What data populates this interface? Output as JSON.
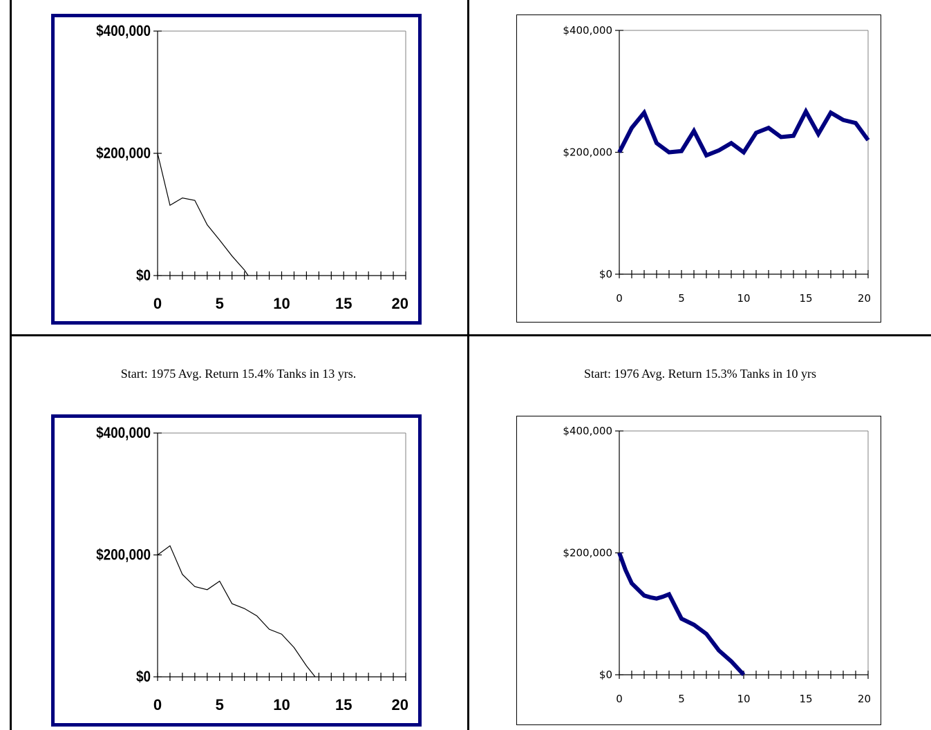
{
  "captions": {
    "left": "Start: 1975 Avg. Return 15.4% Tanks in 13 yrs.",
    "right": "Start: 1976 Avg. Return 15.3% Tanks in 10 yrs"
  },
  "colors": {
    "blue_frame": "#00007f",
    "thick_line": "#00007f",
    "thin_line": "#000000"
  },
  "chart_data": [
    {
      "type": "line",
      "title": "",
      "xlabel": "",
      "ylabel": "",
      "xlim": [
        0,
        20
      ],
      "ylim": [
        0,
        400000
      ],
      "x_ticks": [
        "0",
        "5",
        "10",
        "15",
        "20"
      ],
      "y_ticks": [
        "$0",
        "$200,000",
        "$400,000"
      ],
      "series": [
        {
          "x": [
            0,
            1,
            2,
            3,
            4,
            5,
            6,
            7,
            7.3
          ],
          "values": [
            200000,
            115000,
            127000,
            123000,
            83000,
            58000,
            32000,
            9000,
            0
          ]
        }
      ]
    },
    {
      "type": "line",
      "title": "",
      "xlabel": "",
      "ylabel": "",
      "xlim": [
        0,
        20
      ],
      "ylim": [
        0,
        400000
      ],
      "x_ticks": [
        "0",
        "5",
        "10",
        "15",
        "20"
      ],
      "y_ticks": [
        "$0",
        "$200,000",
        "$400,000"
      ],
      "series": [
        {
          "x": [
            0,
            1,
            2,
            3,
            4,
            5,
            6,
            7,
            8,
            9,
            10,
            11,
            12,
            13,
            14,
            15,
            16,
            17,
            18,
            19,
            20
          ],
          "values": [
            200000,
            240000,
            265000,
            215000,
            200000,
            202000,
            235000,
            195000,
            203000,
            215000,
            200000,
            232000,
            240000,
            225000,
            227000,
            267000,
            230000,
            265000,
            253000,
            248000,
            220000
          ]
        }
      ]
    },
    {
      "type": "line",
      "title": "",
      "xlabel": "",
      "ylabel": "",
      "xlim": [
        0,
        20
      ],
      "ylim": [
        0,
        400000
      ],
      "x_ticks": [
        "0",
        "5",
        "10",
        "15",
        "20"
      ],
      "y_ticks": [
        "$0",
        "$200,000",
        "$400,000"
      ],
      "series": [
        {
          "x": [
            0,
            1,
            2,
            3,
            4,
            5,
            6,
            7,
            8,
            9,
            10,
            11,
            12,
            12.7
          ],
          "values": [
            200000,
            215000,
            168000,
            148000,
            143000,
            157000,
            120000,
            112000,
            100000,
            78000,
            70000,
            48000,
            18000,
            0
          ]
        }
      ]
    },
    {
      "type": "line",
      "title": "",
      "xlabel": "",
      "ylabel": "",
      "xlim": [
        0,
        20
      ],
      "ylim": [
        0,
        400000
      ],
      "x_ticks": [
        "0",
        "5",
        "10",
        "15",
        "20"
      ],
      "y_ticks": [
        "$0",
        "$200,000",
        "$400,000"
      ],
      "series": [
        {
          "x": [
            0,
            0.5,
            1,
            1.5,
            2,
            2.5,
            3,
            3.5,
            4,
            5,
            6,
            7,
            8,
            9,
            10
          ],
          "values": [
            200000,
            172000,
            150000,
            140000,
            130000,
            127000,
            125000,
            128000,
            132000,
            92000,
            82000,
            67000,
            40000,
            22000,
            0
          ]
        }
      ]
    }
  ]
}
